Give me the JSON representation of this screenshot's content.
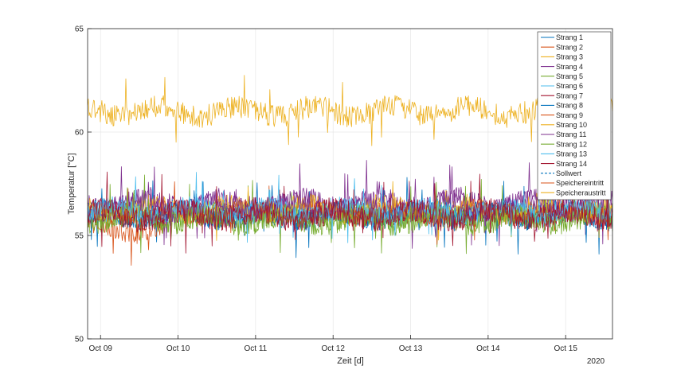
{
  "chart_data": {
    "type": "line",
    "xlabel": "Zeit [d]",
    "ylabel": "Temperatur [°C]",
    "ylim": [
      50,
      65
    ],
    "yticks": [
      50,
      55,
      60,
      65
    ],
    "xlim": [
      "2020-10-08T20:00",
      "2020-10-15T14:30"
    ],
    "xticks": [
      {
        "date": "2020-10-09",
        "label": "Oct 09"
      },
      {
        "date": "2020-10-10",
        "label": "Oct 10"
      },
      {
        "date": "2020-10-11",
        "label": "Oct 11"
      },
      {
        "date": "2020-10-12",
        "label": "Oct 12"
      },
      {
        "date": "2020-10-13",
        "label": "Oct 13"
      },
      {
        "date": "2020-10-14",
        "label": "Oct 14"
      },
      {
        "date": "2020-10-15",
        "label": "Oct 15"
      }
    ],
    "year_label": "2020",
    "grid": true,
    "legend_position": "top-right",
    "series": [
      {
        "name": "Strang 1",
        "color": "#0072BD",
        "mean": 56.0,
        "amp": 0.55,
        "style": "solid"
      },
      {
        "name": "Strang 2",
        "color": "#D95319",
        "mean": 55.3,
        "amp": 0.45,
        "style": "solid",
        "end": "2020-10-09T20:00"
      },
      {
        "name": "Strang 3",
        "color": "#EDB120",
        "mean": 61.0,
        "amp": 0.55,
        "style": "solid"
      },
      {
        "name": "Strang 4",
        "color": "#7E2F8E",
        "mean": 56.5,
        "amp": 0.6,
        "style": "solid"
      },
      {
        "name": "Strang 5",
        "color": "#77AC30",
        "mean": 55.9,
        "amp": 0.6,
        "style": "solid"
      },
      {
        "name": "Strang 6",
        "color": "#4DBEEE",
        "mean": 56.1,
        "amp": 0.5,
        "style": "solid"
      },
      {
        "name": "Strang 7",
        "color": "#A2142F",
        "mean": 56.0,
        "amp": 0.55,
        "style": "solid"
      },
      {
        "name": "Strang 8",
        "color": "#0072BD",
        "mean": 56.0,
        "amp": 0.5,
        "style": "solid"
      },
      {
        "name": "Strang 9",
        "color": "#D95319",
        "mean": 56.1,
        "amp": 0.45,
        "style": "solid"
      },
      {
        "name": "Strang 10",
        "color": "#EDB120",
        "mean": 56.3,
        "amp": 0.5,
        "style": "solid"
      },
      {
        "name": "Strang 11",
        "color": "#7E2F8E",
        "mean": 56.4,
        "amp": 0.55,
        "style": "solid"
      },
      {
        "name": "Strang 12",
        "color": "#77AC30",
        "mean": 55.8,
        "amp": 0.6,
        "style": "solid"
      },
      {
        "name": "Strang 13",
        "color": "#4DBEEE",
        "mean": 56.2,
        "amp": 0.45,
        "style": "solid"
      },
      {
        "name": "Strang 14",
        "color": "#A2142F",
        "mean": 56.0,
        "amp": 0.6,
        "style": "solid"
      },
      {
        "name": "Sollwert",
        "color": "#0072BD",
        "style": "dashed",
        "legend_only": true
      },
      {
        "name": "Speichereintritt",
        "color": "#D95319",
        "style": "solid",
        "legend_only": true
      },
      {
        "name": "Speicheraustritt",
        "color": "#EDB120",
        "style": "solid",
        "legend_only": true
      }
    ]
  }
}
